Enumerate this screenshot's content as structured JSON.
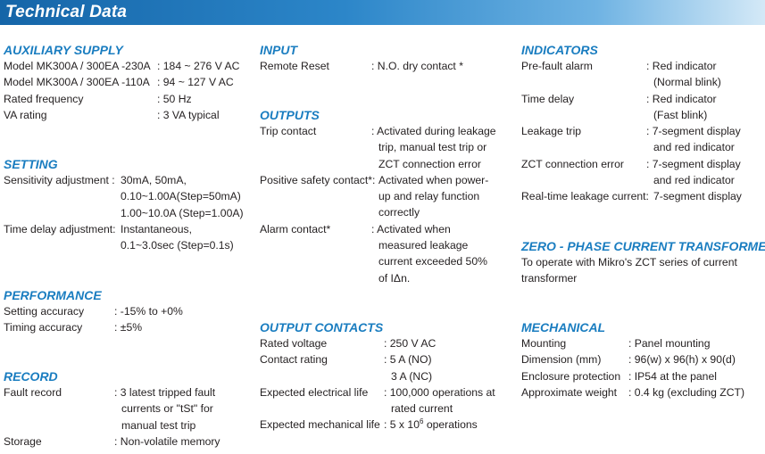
{
  "title": "Technical Data",
  "auxiliary_supply": {
    "title": "AUXILIARY SUPPLY",
    "rows": [
      {
        "label": "Model MK300A / 300EA -230A",
        "value": ": 184 ~ 276 V AC"
      },
      {
        "label": "Model MK300A / 300EA -110A",
        "value": ": 94 ~ 127 V AC"
      },
      {
        "label": "Rated frequency",
        "value": ": 50 Hz"
      },
      {
        "label": "VA rating",
        "value": ": 3 VA typical"
      }
    ]
  },
  "setting": {
    "title": "SETTING",
    "sensitivity_label": "Sensitivity adjustment :",
    "sensitivity_lines": [
      "30mA, 50mA,",
      "0.10~1.00A(Step=50mA)",
      "1.00~10.0A (Step=1.00A)"
    ],
    "time_delay_label": "Time delay adjustment:",
    "time_delay_lines": [
      "Instantaneous,",
      "0.1~3.0sec (Step=0.1s)"
    ]
  },
  "performance": {
    "title": "PERFORMANCE",
    "rows": [
      {
        "label": "Setting accuracy",
        "value": ": -15% to +0%"
      },
      {
        "label": "Timing accuracy",
        "value": ": ±5%"
      }
    ]
  },
  "record": {
    "title": "RECORD",
    "fault_label": "Fault record",
    "fault_lines": [
      ": 3 latest tripped fault",
      "currents or \"tSt\" for",
      "manual test trip"
    ],
    "storage_label": "Storage",
    "storage_value": ": Non-volatile memory"
  },
  "input": {
    "title": "INPUT",
    "label": "Remote Reset",
    "value": ": N.O. dry contact *"
  },
  "outputs": {
    "title": "OUTPUTS",
    "items": [
      {
        "label": "Trip contact",
        "lines": [
          ": Activated during leakage",
          "trip, manual test trip or",
          "ZCT connection error"
        ]
      },
      {
        "label": "Positive safety contact*:",
        "lines": [
          "Activated when power-",
          "up and relay function",
          "correctly"
        ]
      },
      {
        "label": "Alarm contact*",
        "lines": [
          ": Activated when",
          "measured leakage",
          "current exceeded 50%",
          "of IΔn."
        ]
      }
    ]
  },
  "output_contacts": {
    "title": "OUTPUT CONTACTS",
    "rated_voltage_label": "Rated voltage",
    "rated_voltage_value": ": 250 V AC",
    "contact_rating_label": "Contact rating",
    "contact_rating_lines": [
      ": 5 A (NO)",
      "3 A (NC)"
    ],
    "electrical_life_label": "Expected electrical life",
    "electrical_life_lines": [
      ": 100,000 operations at",
      "rated current"
    ],
    "mechanical_life_label": "Expected mechanical life",
    "mechanical_life_prefix": ": 5 x 10",
    "mechanical_life_exp": "6",
    "mechanical_life_suffix": " operations"
  },
  "indicators": {
    "title": "INDICATORS",
    "items": [
      {
        "label": "Pre-fault alarm",
        "lines": [
          ": Red indicator",
          "(Normal blink)"
        ]
      },
      {
        "label": "Time delay",
        "lines": [
          ": Red indicator",
          "(Fast blink)"
        ]
      },
      {
        "label": "Leakage trip",
        "lines": [
          ": 7-segment display",
          "and red indicator"
        ]
      },
      {
        "label": "ZCT connection error",
        "lines": [
          ": 7-segment display",
          "and red indicator"
        ]
      },
      {
        "label": "Real-time leakage current:",
        "lines": [
          "7-segment display"
        ]
      }
    ]
  },
  "zct": {
    "title": "ZERO - PHASE CURRENT TRANSFORMER",
    "lines": [
      "To operate with Mikro's ZCT series of current",
      "transformer"
    ]
  },
  "mechanical": {
    "title": "MECHANICAL",
    "rows": [
      {
        "label": "Mounting",
        "value": ": Panel mounting"
      },
      {
        "label": "Dimension (mm)",
        "value": ": 96(w) x 96(h) x 90(d)"
      },
      {
        "label": "Enclosure protection",
        "value": ": IP54 at the panel"
      },
      {
        "label": "Approximate weight",
        "value": ": 0.4 kg (excluding ZCT)"
      }
    ]
  }
}
